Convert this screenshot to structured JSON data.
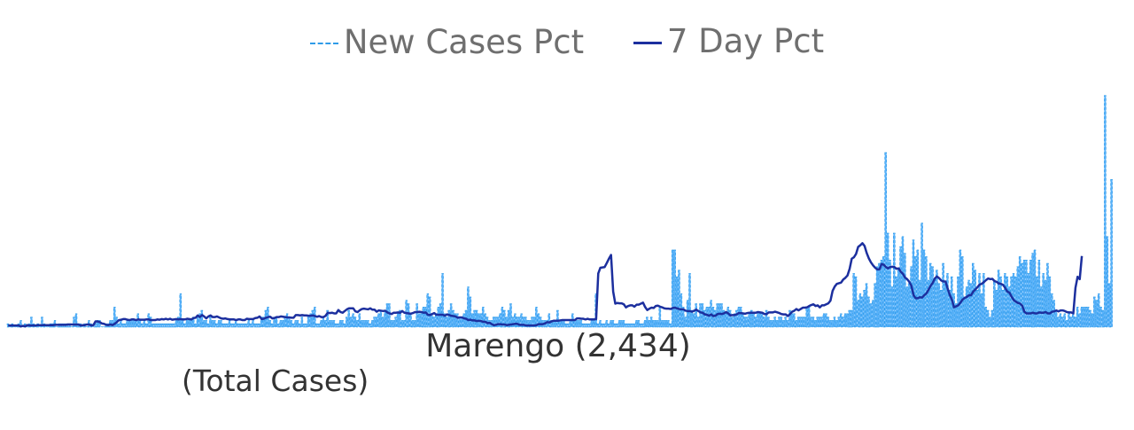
{
  "chart_data": {
    "type": "bar",
    "title": "Marengo (2,434)",
    "subtitle": "(Total Cases)",
    "legend_position": "top-center",
    "grid": false,
    "colors": {
      "new_cases_bars": "#59b2fb",
      "new_cases_outline": "#2f9be8",
      "seven_day_line": "#1c2f9e"
    },
    "ylim": [
      0,
      75
    ],
    "series": [
      {
        "name": "New Cases Pct",
        "style": "bar",
        "values": [
          1,
          0,
          1,
          0,
          0,
          1,
          2,
          0,
          1,
          0,
          1,
          3,
          1,
          0,
          1,
          0,
          3,
          1,
          0,
          0,
          1,
          1,
          2,
          0,
          1,
          1,
          1,
          1,
          1,
          1,
          0,
          3,
          4,
          1,
          1,
          0,
          1,
          0,
          2,
          1,
          0,
          1,
          2,
          2,
          0,
          0,
          1,
          1,
          2,
          2,
          6,
          3,
          1,
          2,
          1,
          1,
          2,
          2,
          2,
          2,
          2,
          4,
          2,
          1,
          2,
          1,
          4,
          3,
          1,
          1,
          1,
          1,
          1,
          1,
          1,
          1,
          1,
          1,
          1,
          2,
          3,
          10,
          2,
          1,
          2,
          2,
          2,
          3,
          1,
          3,
          4,
          5,
          2,
          2,
          1,
          3,
          2,
          2,
          1,
          2,
          2,
          1,
          1,
          1,
          2,
          1,
          1,
          2,
          1,
          1,
          1,
          1,
          1,
          2,
          1,
          2,
          1,
          1,
          1,
          3,
          3,
          5,
          6,
          2,
          1,
          3,
          3,
          1,
          2,
          2,
          3,
          4,
          3,
          2,
          1,
          2,
          2,
          1,
          3,
          1,
          1,
          3,
          4,
          5,
          6,
          1,
          1,
          2,
          3,
          2,
          5,
          2,
          2,
          2,
          1,
          1,
          2,
          2,
          1,
          3,
          5,
          3,
          4,
          3,
          2,
          4,
          2,
          2,
          2,
          2,
          1,
          2,
          3,
          3,
          4,
          5,
          3,
          5,
          7,
          7,
          2,
          2,
          3,
          4,
          5,
          2,
          2,
          8,
          7,
          4,
          2,
          2,
          7,
          4,
          4,
          6,
          6,
          10,
          9,
          4,
          3,
          4,
          6,
          7,
          16,
          4,
          3,
          5,
          7,
          5,
          4,
          4,
          3,
          3,
          4,
          5,
          12,
          9,
          4,
          5,
          5,
          4,
          4,
          6,
          4,
          3,
          2,
          2,
          3,
          3,
          3,
          4,
          6,
          5,
          3,
          5,
          7,
          3,
          4,
          3,
          3,
          4,
          3,
          3,
          2,
          2,
          3,
          3,
          6,
          4,
          3,
          2,
          2,
          2,
          4,
          2,
          2,
          2,
          5,
          2,
          2,
          2,
          1,
          1,
          2,
          4,
          2,
          2,
          2,
          2,
          1,
          1,
          1,
          1,
          2,
          2,
          10,
          1,
          2,
          1,
          1,
          2,
          1,
          2,
          2,
          1,
          1,
          2,
          2,
          2,
          1,
          1,
          1,
          1,
          1,
          2,
          2,
          1,
          1,
          2,
          3,
          2,
          3,
          2,
          2,
          2,
          6,
          2,
          2,
          2,
          2,
          1,
          23,
          23,
          15,
          17,
          10,
          6,
          3,
          8,
          16,
          5,
          4,
          7,
          3,
          7,
          7,
          5,
          6,
          6,
          8,
          6,
          5,
          7,
          7,
          7,
          5,
          4,
          6,
          5,
          3,
          4,
          5,
          6,
          6,
          4,
          3,
          3,
          4,
          5,
          4,
          3,
          4,
          4,
          4,
          3,
          5,
          3,
          2,
          2,
          3,
          2,
          3,
          3,
          2,
          3,
          2,
          5,
          4,
          4,
          2,
          3,
          3,
          3,
          3,
          6,
          6,
          3,
          3,
          2,
          3,
          3,
          3,
          4,
          4,
          3,
          2,
          2,
          3,
          2,
          3,
          4,
          3,
          4,
          4,
          5,
          5,
          16,
          15,
          8,
          10,
          9,
          11,
          13,
          9,
          7,
          8,
          13,
          18,
          19,
          20,
          21,
          52,
          28,
          20,
          12,
          28,
          15,
          17,
          24,
          27,
          22,
          12,
          13,
          18,
          26,
          21,
          23,
          14,
          31,
          23,
          21,
          14,
          19,
          18,
          14,
          17,
          13,
          11,
          19,
          13,
          16,
          11,
          15,
          10,
          7,
          15,
          23,
          21,
          9,
          12,
          14,
          13,
          19,
          17,
          11,
          16,
          10,
          16,
          6,
          5,
          3,
          5,
          14,
          11,
          17,
          15,
          11,
          16,
          15,
          12,
          15,
          16,
          15,
          18,
          21,
          19,
          20,
          20,
          16,
          20,
          22,
          23,
          15,
          20,
          12,
          16,
          14,
          19,
          15,
          10,
          8,
          5,
          3,
          4,
          3,
          4,
          2,
          4,
          3,
          4,
          3,
          6,
          4,
          6,
          6,
          6,
          6,
          5,
          4,
          9,
          8,
          10,
          6,
          5,
          69,
          27,
          13,
          44
        ]
      },
      {
        "name": "7 Day Pct",
        "style": "line",
        "values": [
          0.5,
          0.5,
          0.5,
          0.5,
          0.5,
          0.5,
          0.2,
          0.4,
          0.2,
          0.6,
          0.5,
          0.5,
          0.5,
          0.5,
          0.6,
          0.6,
          0.6,
          0.6,
          0.6,
          0.6,
          0.6,
          0.6,
          0.7,
          0.7,
          0.7,
          0.7,
          0.7,
          0.7,
          0.8,
          0.8,
          0.8,
          0.8,
          0.8,
          0.8,
          0.5,
          0.6,
          0.6,
          0.8,
          0.8,
          0.5,
          0.6,
          1.7,
          1.7,
          1.5,
          1.1,
          1.0,
          0.7,
          0.6,
          0.8,
          0.6,
          1.0,
          1.5,
          2.1,
          2.2,
          2.4,
          2.4,
          2.2,
          2.1,
          2.3,
          2.3,
          2.1,
          2.3,
          2.2,
          2.2,
          2.2,
          2.3,
          2.3,
          2.1,
          2.1,
          2.1,
          2.3,
          2.2,
          2.4,
          2.3,
          2.5,
          2.3,
          2.5,
          2.2,
          2.3,
          2.4,
          2.3,
          2.4,
          2.3,
          2.3,
          2.5,
          2.4,
          2.3,
          2.7,
          2.8,
          3.5,
          3.0,
          3.6,
          3.2,
          2.6,
          3.2,
          3.5,
          3.0,
          3.0,
          3.2,
          2.9,
          2.6,
          2.5,
          2.6,
          2.4,
          2.3,
          2.3,
          2.3,
          2.1,
          2.3,
          2.3,
          2.1,
          2.1,
          2.5,
          2.4,
          2.4,
          2.4,
          2.7,
          2.8,
          3.2,
          2.4,
          2.5,
          2.8,
          3.0,
          3.1,
          2.6,
          2.7,
          3.0,
          3.0,
          3.2,
          3.1,
          3.0,
          2.9,
          2.9,
          2.8,
          2.8,
          3.6,
          3.6,
          3.5,
          3.6,
          3.5,
          3.5,
          3.4,
          3.4,
          3.5,
          3.3,
          3.1,
          3.3,
          3.0,
          3.0,
          3.4,
          4.3,
          4.2,
          4.3,
          4.1,
          4.1,
          5.1,
          4.5,
          4.3,
          4.8,
          5.3,
          5.6,
          5.6,
          5.6,
          4.7,
          4.5,
          5.0,
          5.4,
          5.5,
          5.4,
          5.3,
          5.6,
          5.2,
          5.2,
          4.6,
          5.0,
          4.9,
          4.8,
          4.9,
          4.4,
          4.1,
          3.9,
          4.3,
          4.3,
          4.4,
          4.3,
          4.8,
          4.3,
          4.2,
          4.1,
          4.0,
          4.2,
          4.5,
          4.5,
          4.6,
          4.5,
          4.3,
          4.4,
          3.7,
          3.6,
          3.9,
          4.2,
          3.7,
          3.7,
          3.7,
          3.7,
          3.4,
          3.8,
          3.6,
          3.4,
          3.3,
          3.2,
          2.8,
          2.9,
          2.9,
          2.6,
          2.5,
          2.1,
          2.2,
          2.0,
          2.0,
          1.8,
          1.9,
          1.8,
          1.6,
          1.6,
          1.2,
          1.3,
          0.9,
          0.6,
          0.7,
          0.9,
          0.9,
          0.8,
          0.8,
          0.6,
          0.7,
          0.8,
          0.9,
          1.0,
          1.0,
          0.7,
          0.7,
          0.7,
          0.5,
          0.5,
          0.5,
          0.5,
          0.5,
          0.6,
          0.9,
          0.9,
          0.9,
          1.1,
          1.5,
          1.4,
          1.7,
          1.9,
          1.9,
          1.9,
          2.0,
          2.1,
          2.1,
          2.1,
          2.1,
          2.1,
          2.1,
          2.1,
          2.6,
          2.6,
          2.5,
          2.5,
          2.3,
          2.5,
          2.3,
          2.3,
          2.3,
          2.4,
          16.0,
          17.7,
          17.8,
          17.9,
          19.1,
          20.4,
          21.5,
          10.6,
          7.0,
          7.2,
          7.1,
          7.1,
          6.8,
          5.9,
          6.3,
          6.5,
          6.5,
          6.1,
          6.7,
          6.7,
          7.0,
          7.3,
          6.0,
          5.1,
          5.5,
          5.8,
          5.7,
          6.3,
          6.4,
          6.1,
          5.9,
          5.6,
          5.5,
          5.5,
          5.4,
          5.7,
          5.8,
          5.6,
          5.4,
          5.3,
          5.3,
          4.9,
          4.8,
          4.8,
          4.6,
          4.9,
          5.2,
          4.8,
          4.4,
          4.3,
          3.8,
          3.7,
          3.4,
          3.8,
          3.3,
          3.4,
          3.9,
          4.0,
          3.9,
          4.1,
          4.5,
          4.1,
          3.5,
          3.6,
          3.6,
          3.8,
          4.2,
          4.2,
          4.1,
          4.0,
          4.2,
          4.3,
          4.3,
          4.3,
          4.3,
          4.5,
          4.4,
          4.3,
          3.9,
          3.9,
          4.4,
          4.4,
          4.4,
          4.6,
          4.4,
          4.2,
          3.9,
          3.8,
          3.8,
          3.3,
          3.9,
          4.6,
          4.9,
          5.4,
          5.0,
          5.4,
          5.8,
          5.8,
          5.9,
          6.3,
          6.6,
          6.8,
          6.3,
          6.5,
          5.9,
          6.5,
          6.5,
          6.8,
          7.1,
          7.9,
          10.8,
          12.1,
          12.9,
          13.1,
          13.3,
          14.2,
          14.7,
          15.4,
          17.4,
          20.4,
          20.8,
          21.8,
          23.9,
          24.4,
          25.0,
          24.2,
          22.1,
          20.5,
          19.3,
          18.4,
          17.7,
          17.2,
          17.2,
          18.8,
          18.6,
          17.9,
          17.5,
          17.9,
          18.0,
          17.9,
          17.4,
          17.5,
          16.5,
          15.9,
          14.8,
          14.3,
          13.5,
          12.3,
          9.5,
          8.6,
          8.6,
          8.9,
          8.8,
          9.5,
          10.0,
          11.1,
          12.3,
          13.2,
          14.5,
          15.1,
          14.6,
          13.9,
          13.6,
          13.6,
          11.5,
          9.6,
          8.2,
          5.9,
          6.2,
          6.5,
          7.3,
          8.2,
          8.7,
          9.0,
          9.5,
          9.5,
          10.6,
          11.2,
          11.9,
          12.7,
          12.9,
          13.4,
          14.0,
          14.5,
          14.3,
          14.4,
          13.7,
          13.5,
          13.0,
          12.9,
          12.6,
          11.7,
          10.6,
          10.3,
          9.1,
          8.1,
          7.6,
          7.2,
          7.0,
          6.4,
          4.6,
          4.1,
          4.1,
          4.1,
          4.3,
          4.1,
          4.1,
          4.4,
          4.3,
          4.3,
          4.5,
          4.1,
          4.1,
          4.6,
          4.7,
          5.0,
          4.7,
          5.0,
          5.0,
          4.8,
          4.5,
          4.4,
          4.4,
          4.1,
          11.7,
          15.0,
          14.3,
          21.2
        ]
      }
    ]
  }
}
